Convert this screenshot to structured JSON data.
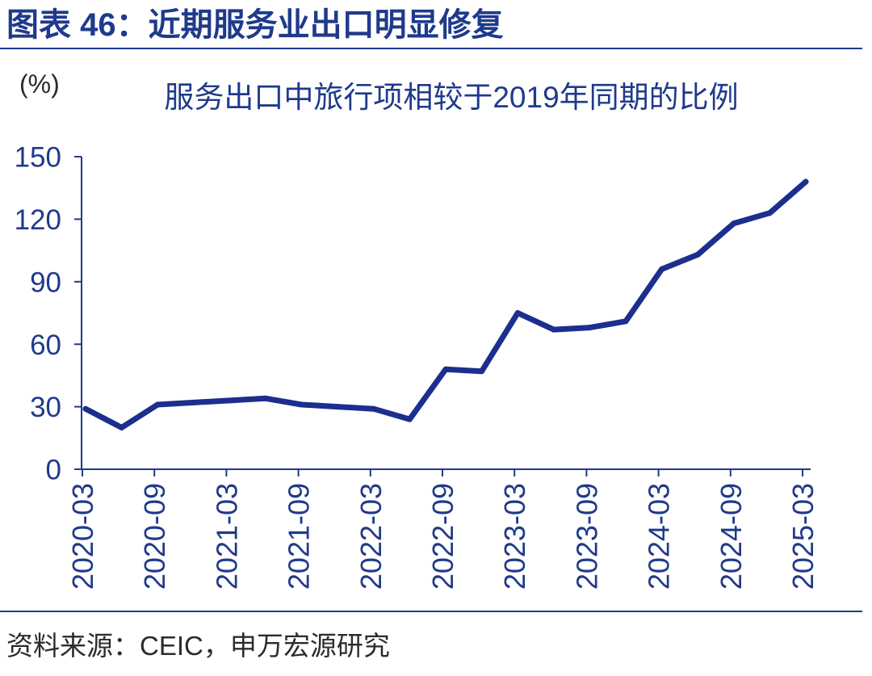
{
  "figure": {
    "caption": "图表 46：近期服务业出口明显修复",
    "source": "资料来源：CEIC，申万宏源研究"
  },
  "colors": {
    "accent": "#1F3A8C",
    "series": "#1C2E8E",
    "text": "#2B2B2B"
  },
  "chart_data": {
    "type": "line",
    "title": "服务出口中旅行项相较于2019年同期的比例",
    "ylabel": "(%)",
    "ylim": [
      0,
      150
    ],
    "yticks": [
      0,
      30,
      60,
      90,
      120,
      150
    ],
    "xticks": [
      "2020-03",
      "2020-09",
      "2021-03",
      "2021-09",
      "2022-03",
      "2022-09",
      "2023-03",
      "2023-09",
      "2024-03",
      "2024-09",
      "2025-03"
    ],
    "x": [
      "2020-03",
      "2020-06",
      "2020-09",
      "2020-12",
      "2021-03",
      "2021-06",
      "2021-09",
      "2021-12",
      "2022-03",
      "2022-06",
      "2022-09",
      "2022-12",
      "2023-03",
      "2023-06",
      "2023-09",
      "2023-12",
      "2024-03",
      "2024-06",
      "2024-09",
      "2024-12",
      "2025-03"
    ],
    "grid": false,
    "series": [
      {
        "values": [
          29,
          20,
          31,
          32,
          33,
          34,
          31,
          30,
          29,
          24,
          48,
          47,
          75,
          67,
          68,
          71,
          96,
          103,
          118,
          123,
          138
        ]
      }
    ]
  }
}
